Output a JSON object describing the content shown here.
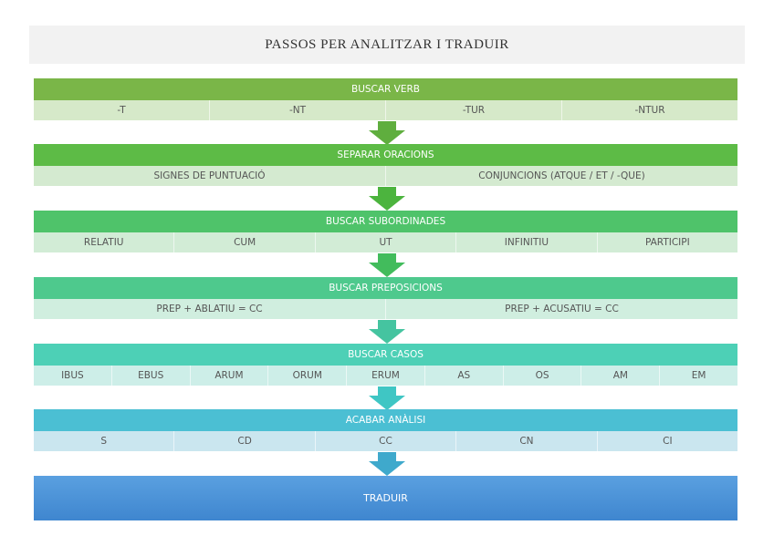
{
  "title": "PASSOS PER ANALITZAR I TRADUIR",
  "steps": [
    {
      "label": "BUSCAR VERB",
      "items": [
        "-T",
        "-NT",
        "-TUR",
        "-NTUR"
      ]
    },
    {
      "label": "SEPARAR ORACIONS",
      "items": [
        "SIGNES DE PUNTUACIÓ",
        "CONJUNCIONS (ATQUE / ET / -QUE)"
      ]
    },
    {
      "label": "BUSCAR SUBORDINADES",
      "items": [
        "RELATIU",
        "CUM",
        "UT",
        "INFINITIU",
        "PARTICIPI"
      ]
    },
    {
      "label": "BUSCAR PREPOSICIONS",
      "items": [
        "PREP + ABLATIU = CC",
        "PREP + ACUSATIU = CC"
      ]
    },
    {
      "label": "BUSCAR CASOS",
      "items": [
        "IBUS",
        "EBUS",
        "ARUM",
        "ORUM",
        "ERUM",
        "AS",
        "OS",
        "AM",
        "EM"
      ]
    },
    {
      "label": "ACABAR ANÀLISI",
      "items": [
        "S",
        "CD",
        "CC",
        "CN",
        "CI"
      ]
    }
  ],
  "final": "TRADUIR"
}
